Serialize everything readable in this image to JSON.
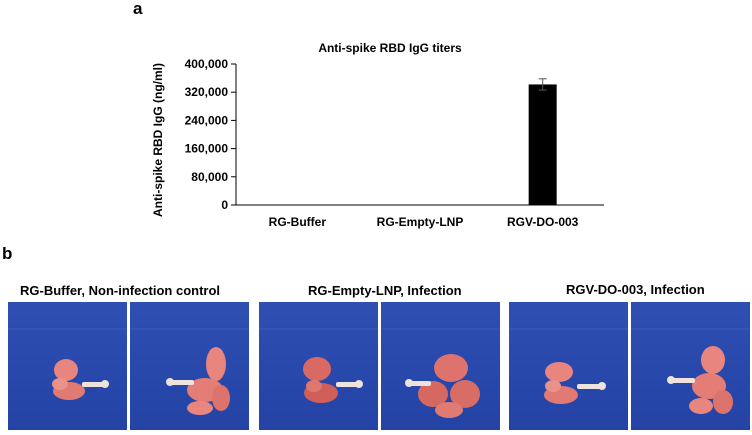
{
  "panel_a_label": "a",
  "panel_b_label": "b",
  "chart_data": {
    "type": "bar",
    "title": "Anti-spike RBD IgG titers",
    "ylabel": "Anti-spike RBD IgG (ng/ml)",
    "xlabel": "",
    "categories": [
      "RG-Buffer",
      "RG-Empty-LNP",
      "RGV-DO-003"
    ],
    "values": [
      0,
      0,
      342000
    ],
    "errors": [
      0,
      0,
      16000
    ],
    "ylim": [
      0,
      400000
    ],
    "yticks": [
      0,
      80000,
      160000,
      240000,
      320000,
      400000
    ],
    "ytick_labels": [
      "0",
      "80,000",
      "160,000",
      "240,000",
      "320,000",
      "400,000"
    ],
    "bar_color": "#000000",
    "grid": false
  },
  "photo_groups": [
    {
      "title": "RG-Buffer, Non-infection control"
    },
    {
      "title": "RG-Empty-LNP, Infection"
    },
    {
      "title": "RGV-DO-003, Infection"
    }
  ],
  "colors": {
    "photo_background": "#2a49ad",
    "lung_tissue": "#e0756e"
  }
}
